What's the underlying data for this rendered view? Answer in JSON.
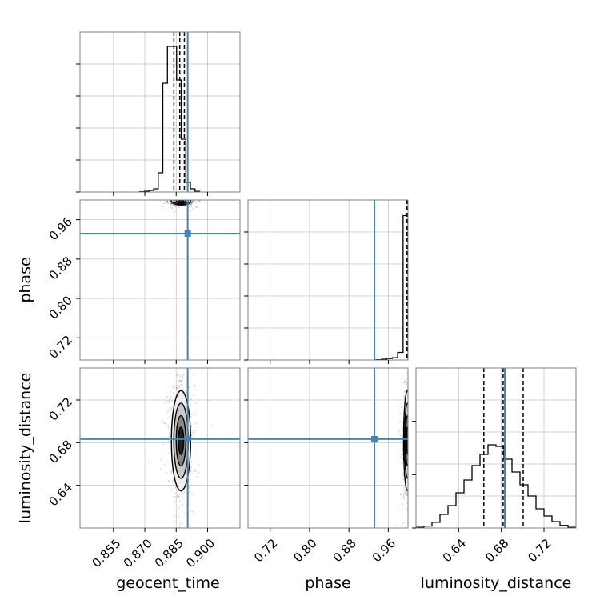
{
  "chart_data": {
    "type": "corner",
    "parameters": [
      "geocent_time",
      "phase",
      "luminosity_distance"
    ],
    "truths": {
      "geocent_time": 0.8905,
      "phase": 0.9318,
      "luminosity_distance": 0.6833
    },
    "colors": {
      "truth": "#4682b4",
      "hist": "#000000",
      "grid": "#c8c8c8",
      "frame": "#808080"
    },
    "grid": true,
    "axes": {
      "geocent_time": {
        "range": [
          0.839,
          0.9155
        ],
        "ticks": [
          "0.855",
          "0.870",
          "0.885",
          "0.900"
        ]
      },
      "phase": {
        "range": [
          0.675,
          1.0
        ],
        "ticks": [
          "0.72",
          "0.80",
          "0.88",
          "0.96"
        ]
      },
      "luminosity_distance": {
        "range": [
          0.6,
          0.75
        ],
        "ticks": [
          "0.64",
          "0.68",
          "0.72"
        ]
      }
    },
    "histograms": {
      "geocent_time": {
        "bin_edges": [
          0.8676,
          0.8698,
          0.872,
          0.8742,
          0.8764,
          0.8786,
          0.8808,
          0.883,
          0.8852,
          0.8874,
          0.8896,
          0.8918,
          0.894,
          0.8962
        ],
        "values": [
          0.002,
          0.005,
          0.01,
          0.02,
          0.12,
          0.68,
          0.91,
          0.91,
          0.7,
          0.33,
          0.06,
          0.02,
          0.004
        ],
        "quantiles": [
          0.8839,
          0.8867,
          0.8889
        ]
      },
      "phase": {
        "bin_edges": [
          0.935,
          0.946,
          0.957,
          0.968,
          0.979,
          0.99,
          1.0
        ],
        "values": [
          0.002,
          0.005,
          0.01,
          0.015,
          0.05,
          0.95
        ],
        "quantiles": [
          0.998,
          0.999,
          1.0
        ]
      },
      "luminosity_distance": {
        "bin_edges": [
          0.6,
          0.6075,
          0.615,
          0.6225,
          0.63,
          0.6375,
          0.645,
          0.6525,
          0.66,
          0.6675,
          0.675,
          0.6825,
          0.69,
          0.6975,
          0.705,
          0.7125,
          0.72,
          0.7275,
          0.735,
          0.7425,
          0.75
        ],
        "values": [
          0.004,
          0.012,
          0.036,
          0.085,
          0.14,
          0.22,
          0.3,
          0.39,
          0.46,
          0.52,
          0.51,
          0.43,
          0.35,
          0.27,
          0.2,
          0.12,
          0.075,
          0.04,
          0.016,
          0.004
        ],
        "quantiles": [
          0.6636,
          0.6817,
          0.7005
        ]
      }
    },
    "joint": {
      "geocent_time_vs_phase": {
        "center": [
          0.8873,
          0.998
        ],
        "spread": [
          0.0023,
          0.004
        ]
      },
      "geocent_time_vs_luminosity_distance": {
        "center": [
          0.8873,
          0.6818
        ],
        "spread": [
          0.0023,
          0.0235
        ]
      },
      "phase_vs_luminosity_distance": {
        "center": [
          0.999,
          0.6818
        ],
        "spread": [
          0.004,
          0.0235
        ]
      }
    }
  }
}
